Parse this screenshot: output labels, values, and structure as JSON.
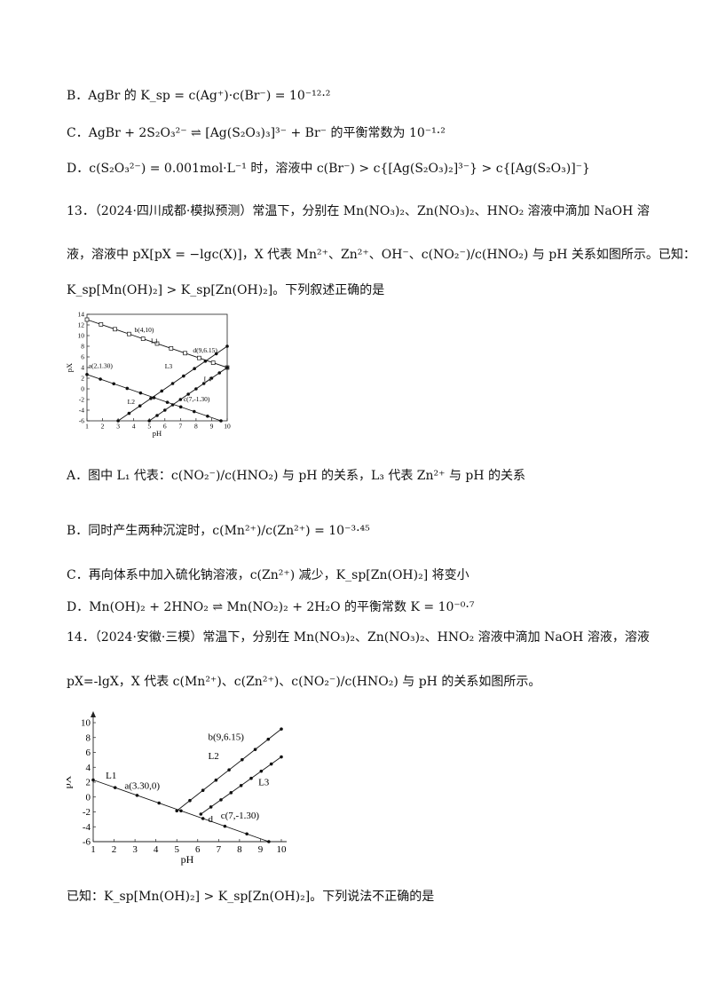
{
  "lines": {
    "b": "B．AgBr 的 K_sp = c(Ag⁺)·c(Br⁻) = 10⁻¹²·²",
    "c": "C．AgBr + 2S₂O₃²⁻ ⇌ [Ag(S₂O₃)₃]³⁻ + Br⁻ 的平衡常数为 10⁻¹·²",
    "d": "D．c(S₂O₃²⁻) = 0.001mol·L⁻¹ 时，溶液中 c(Br⁻) > c{[Ag(S₂O₃)₂]³⁻} > c{[Ag(S₂O₃)]⁻}",
    "q13_line1": "13．（2024·四川成都·模拟预测）常温下，分别在 Mn(NO₃)₂、Zn(NO₃)₂、HNO₂ 溶液中滴加 NaOH 溶",
    "q13_line2": "液，溶液中 pX[pX = −lgc(X)]，X 代表 Mn²⁺、Zn²⁺、OH⁻、c(NO₂⁻)/c(HNO₂) 与 pH 关系如图所示。已知：",
    "q13_line3": "K_sp[Mn(OH)₂] > K_sp[Zn(OH)₂]。下列叙述正确的是",
    "q13_A": "A．图中 L₁ 代表：c(NO₂⁻)/c(HNO₂) 与 pH 的关系，L₃ 代表 Zn²⁺ 与 pH 的关系",
    "q13_B": "B．同时产生两种沉淀时，c(Mn²⁺)/c(Zn²⁺) = 10⁻³·⁴⁵",
    "q13_C": "C．再向体系中加入硫化钠溶液，c(Zn²⁺) 减少，K_sp[Zn(OH)₂] 将变小",
    "q13_D": "D．Mn(OH)₂ + 2HNO₂ ⇌ Mn(NO₂)₂ + 2H₂O 的平衡常数 K = 10⁻⁰·⁷",
    "q14_line1": "14．（2024·安徽·三模）常温下，分别在 Mn(NO₃)₂、Zn(NO₃)₂、HNO₂ 溶液中滴加 NaOH 溶液，溶液",
    "q14_line2": "pX=-lgX，X 代表 c(Mn²⁺)、c(Zn²⁺)、c(NO₂⁻)/c(HNO₂) 与 pH 的关系如图所示。",
    "q14_line3": "已知：K_sp[Mn(OH)₂] > K_sp[Zn(OH)₂]。下列说法不正确的是"
  },
  "chart_data": [
    {
      "type": "line",
      "xlabel": "pH",
      "ylabel": "pX",
      "xlim": [
        1,
        10
      ],
      "ylim": [
        -6,
        14
      ],
      "x_ticks": [
        "1",
        "2",
        "3",
        "4",
        "5",
        "6",
        "7",
        "8",
        "9",
        "10"
      ],
      "y_ticks": [
        "14",
        "12",
        "10",
        "8",
        "6",
        "4",
        "2",
        "0",
        "-2",
        "-4",
        "-6"
      ],
      "series": [
        {
          "name": "L1",
          "x": [
            1,
            4,
            9.6,
            10
          ],
          "y": [
            13,
            10,
            4.4,
            4.0
          ]
        },
        {
          "name": "L2",
          "x": [
            1,
            9.6
          ],
          "y": [
            2.7,
            -6
          ]
        },
        {
          "name": "L3",
          "x": [
            3,
            10
          ],
          "y": [
            -6,
            8
          ]
        },
        {
          "name": "L4",
          "x": [
            5,
            10
          ],
          "y": [
            -6,
            4
          ]
        }
      ],
      "annotations": [
        "b(4,10)",
        "d(9,6.15)",
        "a(2,1.30)",
        "c(7,-1.30)",
        "L1",
        "L2",
        "L3",
        "L4"
      ]
    },
    {
      "type": "line",
      "xlabel": "pH",
      "ylabel": "pX",
      "xlim": [
        1,
        10
      ],
      "ylim": [
        -6,
        10
      ],
      "x_ticks": [
        "1",
        "2",
        "3",
        "4",
        "5",
        "6",
        "7",
        "8",
        "9",
        "10"
      ],
      "y_ticks": [
        "10",
        "8",
        "6",
        "4",
        "2",
        "0",
        "-2",
        "-4",
        "-6"
      ],
      "series": [
        {
          "name": "L1",
          "x": [
            1,
            9.4
          ],
          "y": [
            2.3,
            -6
          ]
        },
        {
          "name": "L2",
          "x": [
            5,
            10
          ],
          "y": [
            -1.85,
            9.15
          ]
        },
        {
          "name": "L3",
          "x": [
            6.15,
            10
          ],
          "y": [
            -2.3,
            5.4
          ]
        }
      ],
      "annotations": [
        "b(9,6.15)",
        "a(3.30,0)",
        "c(7,-1.30)",
        "d",
        "L1",
        "L2",
        "L3"
      ]
    }
  ]
}
